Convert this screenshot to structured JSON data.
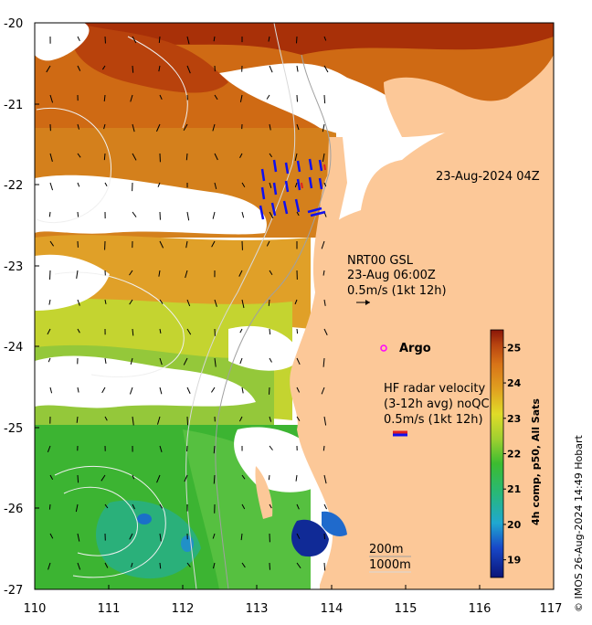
{
  "map": {
    "timestamp": "23-Aug-2024 04Z",
    "lon_ticks": [
      "110",
      "111",
      "112",
      "113",
      "114",
      "115",
      "116",
      "117"
    ],
    "lat_ticks": [
      "-20",
      "-21",
      "-22",
      "-23",
      "-24",
      "-25",
      "-26",
      "-27"
    ],
    "lon_range": [
      110,
      117
    ],
    "lat_range": [
      -27,
      -20
    ]
  },
  "legend": {
    "nrt_title": "NRT00 GSL",
    "nrt_time": "23-Aug 06:00Z",
    "nrt_scale": "0.5m/s (1kt 12h)",
    "argo_label": "Argo",
    "hf_title": "HF radar velocity",
    "hf_sub": "(3-12h avg) noQC",
    "hf_scale": "0.5m/s (1kt 12h)",
    "depth_200": "200m",
    "depth_1000": "1000m"
  },
  "colorbar": {
    "title": "4h comp, p50, All Sats",
    "ticks": [
      "25",
      "24",
      "23",
      "22",
      "21",
      "20",
      "19"
    ],
    "tick_values": [
      25,
      24,
      23,
      22,
      21,
      20,
      19
    ],
    "range": [
      18.5,
      25.5
    ]
  },
  "credit": "© IMOS 26-Aug-2024 14:49 Hobart",
  "colors": {
    "land": "#fcc898",
    "cloud": "#ffffff",
    "hot": "#b03a08",
    "warm": "#d9781a",
    "mid": "#e2a226",
    "yellow": "#d6d82c",
    "green": "#36b230",
    "cyan": "#16a6cc",
    "blue": "#102090",
    "argo": "#ff00ff",
    "hf_arrow": "#1010ee"
  }
}
